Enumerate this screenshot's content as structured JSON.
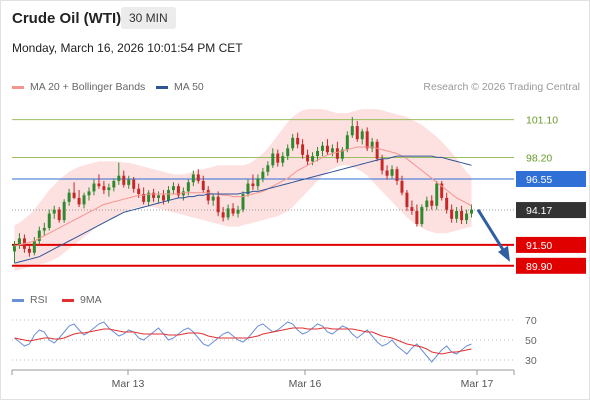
{
  "header": {
    "title": "Crude Oil (WTI)",
    "timeframe": "30 MIN",
    "datetime": "Monday, March 16, 2026 10:01:54 PM CET"
  },
  "legend": {
    "ma20": "MA 20 + Bollinger Bands",
    "ma50": "MA 50",
    "source": "Research © 2026 Trading Central",
    "rsi": "RSI",
    "ma9": "9MA"
  },
  "colors": {
    "ma20": "#f4958f",
    "ma50": "#2f5597",
    "bollinger_fill": "#fde0e0",
    "up_candle": "#2f8a2f",
    "down_candle": "#c62828",
    "resistance": "#9bbf5e",
    "pivot": "#2f6fd6",
    "support": "#e00000",
    "last_price": "#333333",
    "rsi_line": "#6b8fd8",
    "rsi_ma": "#e23030"
  },
  "chart_data": {
    "type": "candlestick",
    "x_labels": [
      "Mar 13",
      "Mar 16",
      "Mar 17"
    ],
    "ylim": [
      88.2,
      102.6
    ],
    "levels": [
      {
        "value": 101.1,
        "label": "101.10",
        "kind": "resistance"
      },
      {
        "value": 98.2,
        "label": "98.20",
        "kind": "resistance"
      },
      {
        "value": 96.55,
        "label": "96.55",
        "kind": "pivot"
      },
      {
        "value": 94.17,
        "label": "94.17",
        "kind": "last"
      },
      {
        "value": 91.5,
        "label": "91.50",
        "kind": "support"
      },
      {
        "value": 89.9,
        "label": "89.90",
        "kind": "support"
      }
    ],
    "forecast_arrow": {
      "from": 94.2,
      "to": 90.2,
      "direction": "down"
    },
    "candles": [
      [
        91.0,
        91.8,
        90.1,
        91.5
      ],
      [
        91.5,
        92.4,
        91.2,
        92.0
      ],
      [
        92.0,
        92.3,
        90.9,
        91.2
      ],
      [
        91.2,
        91.6,
        90.6,
        90.9
      ],
      [
        90.9,
        92.1,
        90.7,
        91.8
      ],
      [
        91.8,
        92.9,
        91.5,
        92.6
      ],
      [
        92.6,
        93.2,
        92.2,
        92.8
      ],
      [
        92.8,
        94.2,
        92.6,
        93.9
      ],
      [
        93.9,
        94.5,
        93.5,
        94.2
      ],
      [
        94.2,
        94.4,
        93.2,
        93.4
      ],
      [
        93.4,
        95.0,
        93.2,
        94.8
      ],
      [
        94.8,
        95.8,
        94.5,
        95.5
      ],
      [
        95.5,
        96.3,
        95.0,
        95.1
      ],
      [
        95.1,
        95.7,
        94.4,
        94.6
      ],
      [
        94.6,
        95.5,
        94.3,
        95.3
      ],
      [
        95.3,
        95.9,
        94.9,
        95.6
      ],
      [
        95.6,
        96.5,
        95.3,
        96.2
      ],
      [
        96.2,
        96.9,
        95.8,
        96.0
      ],
      [
        96.0,
        96.4,
        95.4,
        95.7
      ],
      [
        95.7,
        96.2,
        95.2,
        95.9
      ],
      [
        95.9,
        96.6,
        95.6,
        96.4
      ],
      [
        96.4,
        97.8,
        96.1,
        96.8
      ],
      [
        96.8,
        97.2,
        95.9,
        96.1
      ],
      [
        96.1,
        96.8,
        95.8,
        96.5
      ],
      [
        96.5,
        96.7,
        95.5,
        95.8
      ],
      [
        95.8,
        96.2,
        95.1,
        95.4
      ],
      [
        95.4,
        95.9,
        94.6,
        94.8
      ],
      [
        94.8,
        95.7,
        94.5,
        95.5
      ],
      [
        95.5,
        95.8,
        94.8,
        95.1
      ],
      [
        95.1,
        95.6,
        94.7,
        95.3
      ],
      [
        95.3,
        95.7,
        94.6,
        94.9
      ],
      [
        94.9,
        96.0,
        94.7,
        95.7
      ],
      [
        95.7,
        96.3,
        95.4,
        96.0
      ],
      [
        96.0,
        96.2,
        95.1,
        95.3
      ],
      [
        95.3,
        95.9,
        94.9,
        95.6
      ],
      [
        95.6,
        96.5,
        95.3,
        96.3
      ],
      [
        96.3,
        97.2,
        96.0,
        96.9
      ],
      [
        96.9,
        97.3,
        96.2,
        96.4
      ],
      [
        96.4,
        96.8,
        95.5,
        95.7
      ],
      [
        95.7,
        96.0,
        94.6,
        94.9
      ],
      [
        94.9,
        95.4,
        94.5,
        95.2
      ],
      [
        95.2,
        95.6,
        93.7,
        94.0
      ],
      [
        94.0,
        94.4,
        93.3,
        93.6
      ],
      [
        93.6,
        94.6,
        93.4,
        94.3
      ],
      [
        94.3,
        94.7,
        93.7,
        93.9
      ],
      [
        93.9,
        94.5,
        93.6,
        94.2
      ],
      [
        94.2,
        95.6,
        94.0,
        95.4
      ],
      [
        95.4,
        96.5,
        95.2,
        96.2
      ],
      [
        96.2,
        96.9,
        95.7,
        96.0
      ],
      [
        96.0,
        96.9,
        95.7,
        96.6
      ],
      [
        96.6,
        97.4,
        96.3,
        97.1
      ],
      [
        97.1,
        97.9,
        96.8,
        97.6
      ],
      [
        97.6,
        98.9,
        97.4,
        98.5
      ],
      [
        98.5,
        98.8,
        97.5,
        97.8
      ],
      [
        97.8,
        98.6,
        97.5,
        98.3
      ],
      [
        98.3,
        99.2,
        98.0,
        98.9
      ],
      [
        98.9,
        100.0,
        98.7,
        99.7
      ],
      [
        99.7,
        100.1,
        98.9,
        99.2
      ],
      [
        99.2,
        99.6,
        98.1,
        98.4
      ],
      [
        98.4,
        98.8,
        97.6,
        97.9
      ],
      [
        97.9,
        98.6,
        97.6,
        98.3
      ],
      [
        98.3,
        99.0,
        97.9,
        98.7
      ],
      [
        98.7,
        99.4,
        98.3,
        99.1
      ],
      [
        99.1,
        99.6,
        98.4,
        98.6
      ],
      [
        98.6,
        99.2,
        98.3,
        98.9
      ],
      [
        98.9,
        99.4,
        97.8,
        98.1
      ],
      [
        98.1,
        99.0,
        97.9,
        98.8
      ],
      [
        98.8,
        100.2,
        98.6,
        99.9
      ],
      [
        99.9,
        101.3,
        99.7,
        100.6
      ],
      [
        100.6,
        101.0,
        99.4,
        99.6
      ],
      [
        99.6,
        100.4,
        99.2,
        100.2
      ],
      [
        100.2,
        100.5,
        98.7,
        98.9
      ],
      [
        98.9,
        99.7,
        98.6,
        99.4
      ],
      [
        99.4,
        99.6,
        97.9,
        98.1
      ],
      [
        98.1,
        98.4,
        96.9,
        97.2
      ],
      [
        97.2,
        97.6,
        96.5,
        96.8
      ],
      [
        96.8,
        97.6,
        96.6,
        97.3
      ],
      [
        97.3,
        97.5,
        96.1,
        96.4
      ],
      [
        96.4,
        96.8,
        95.3,
        95.5
      ],
      [
        95.5,
        95.7,
        94.1,
        94.4
      ],
      [
        94.4,
        94.9,
        93.8,
        94.1
      ],
      [
        94.1,
        94.6,
        92.9,
        93.1
      ],
      [
        93.1,
        94.6,
        92.9,
        94.4
      ],
      [
        94.4,
        95.2,
        94.1,
        94.9
      ],
      [
        94.9,
        95.3,
        94.2,
        94.5
      ],
      [
        94.5,
        96.4,
        94.2,
        96.2
      ],
      [
        96.2,
        96.4,
        94.9,
        95.1
      ],
      [
        95.1,
        95.5,
        93.9,
        94.2
      ],
      [
        94.2,
        94.6,
        93.2,
        93.5
      ],
      [
        93.5,
        94.4,
        93.2,
        94.1
      ],
      [
        94.1,
        94.5,
        93.1,
        93.4
      ],
      [
        93.4,
        94.2,
        93.1,
        93.9
      ],
      [
        93.9,
        94.6,
        93.6,
        94.2
      ]
    ],
    "ma20": [
      91.4,
      91.5,
      91.6,
      91.7,
      91.8,
      92.0,
      92.2,
      92.4,
      92.6,
      92.8,
      93.0,
      93.2,
      93.4,
      93.6,
      93.8,
      94.0,
      94.2,
      94.4,
      94.6,
      94.7,
      94.8,
      94.9,
      95.0,
      95.1,
      95.2,
      95.3,
      95.3,
      95.4,
      95.4,
      95.4,
      95.4,
      95.4,
      95.4,
      95.4,
      95.5,
      95.5,
      95.5,
      95.5,
      95.5,
      95.5,
      95.4,
      95.4,
      95.3,
      95.3,
      95.2,
      95.2,
      95.2,
      95.3,
      95.4,
      95.5,
      95.6,
      95.8,
      96.0,
      96.2,
      96.4,
      96.6,
      96.9,
      97.2,
      97.4,
      97.6,
      97.8,
      98.0,
      98.2,
      98.4,
      98.5,
      98.6,
      98.7,
      98.8,
      98.9,
      99.0,
      99.0,
      99.0,
      99.0,
      98.9,
      98.8,
      98.7,
      98.6,
      98.5,
      98.3,
      98.1,
      97.8,
      97.5,
      97.2,
      96.9,
      96.6,
      96.3,
      96.0,
      95.7,
      95.4,
      95.1,
      94.9,
      94.7,
      94.5
    ],
    "bb_upper": [
      93.0,
      93.2,
      93.5,
      93.8,
      94.2,
      94.7,
      95.2,
      95.7,
      96.1,
      96.5,
      96.8,
      97.1,
      97.3,
      97.5,
      97.6,
      97.7,
      97.8,
      97.9,
      97.9,
      97.9,
      97.9,
      97.9,
      97.8,
      97.8,
      97.7,
      97.6,
      97.5,
      97.4,
      97.3,
      97.2,
      97.1,
      97.0,
      96.9,
      96.9,
      96.9,
      97.0,
      97.1,
      97.2,
      97.3,
      97.4,
      97.5,
      97.6,
      97.6,
      97.6,
      97.6,
      97.6,
      97.6,
      97.7,
      97.9,
      98.2,
      98.5,
      98.9,
      99.4,
      99.9,
      100.4,
      100.9,
      101.3,
      101.6,
      101.8,
      101.9,
      101.9,
      101.9,
      101.9,
      101.8,
      101.7,
      101.6,
      101.6,
      101.6,
      101.7,
      101.8,
      101.9,
      101.9,
      101.9,
      101.9,
      101.8,
      101.7,
      101.6,
      101.5,
      101.4,
      101.3,
      101.1,
      100.9,
      100.7,
      100.4,
      100.1,
      99.8,
      99.4,
      99.0,
      98.6,
      98.1,
      97.6,
      97.1,
      96.7
    ],
    "bb_lower": [
      89.5,
      89.6,
      89.7,
      89.8,
      89.9,
      90.0,
      90.1,
      90.2,
      90.4,
      90.6,
      90.9,
      91.2,
      91.5,
      91.8,
      92.1,
      92.4,
      92.7,
      93.0,
      93.2,
      93.4,
      93.6,
      93.8,
      94.0,
      94.2,
      94.3,
      94.4,
      94.4,
      94.4,
      94.4,
      94.3,
      94.2,
      94.1,
      94.0,
      93.9,
      93.8,
      93.7,
      93.6,
      93.5,
      93.4,
      93.3,
      93.2,
      93.1,
      93.0,
      92.9,
      92.9,
      92.9,
      93.0,
      93.1,
      93.2,
      93.3,
      93.4,
      93.5,
      93.6,
      93.7,
      93.9,
      94.1,
      94.4,
      94.8,
      95.2,
      95.6,
      96.0,
      96.4,
      96.8,
      97.1,
      97.3,
      97.5,
      97.6,
      97.6,
      97.5,
      97.3,
      97.1,
      96.8,
      96.4,
      96.0,
      95.6,
      95.2,
      94.8,
      94.4,
      94.0,
      93.6,
      93.3,
      93.0,
      92.8,
      92.6,
      92.5,
      92.4,
      92.4,
      92.4,
      92.5,
      92.6,
      92.7,
      92.8,
      92.9
    ],
    "ma50": [
      90.1,
      90.2,
      90.3,
      90.4,
      90.5,
      90.6,
      90.8,
      91.0,
      91.2,
      91.4,
      91.6,
      91.8,
      92.0,
      92.2,
      92.4,
      92.6,
      92.8,
      93.0,
      93.2,
      93.4,
      93.6,
      93.8,
      94.0,
      94.1,
      94.2,
      94.3,
      94.4,
      94.5,
      94.6,
      94.7,
      94.8,
      94.9,
      95.0,
      95.1,
      95.1,
      95.2,
      95.2,
      95.3,
      95.3,
      95.4,
      95.4,
      95.4,
      95.4,
      95.4,
      95.4,
      95.4,
      95.5,
      95.5,
      95.6,
      95.6,
      95.7,
      95.8,
      95.9,
      96.0,
      96.1,
      96.2,
      96.3,
      96.4,
      96.5,
      96.6,
      96.7,
      96.8,
      96.9,
      97.0,
      97.1,
      97.2,
      97.3,
      97.4,
      97.5,
      97.6,
      97.7,
      97.8,
      97.9,
      98.0,
      98.1,
      98.1,
      98.2,
      98.3,
      98.3,
      98.3,
      98.3,
      98.3,
      98.3,
      98.3,
      98.3,
      98.2,
      98.2,
      98.1,
      98.0,
      97.9,
      97.8,
      97.7,
      97.6
    ],
    "rsi": {
      "ticks": [
        70,
        50,
        30
      ],
      "ylim": [
        22,
        78
      ],
      "values": [
        52,
        48,
        44,
        46,
        55,
        60,
        58,
        50,
        47,
        52,
        58,
        64,
        66,
        60,
        55,
        58,
        62,
        66,
        68,
        62,
        58,
        54,
        56,
        60,
        58,
        52,
        50,
        54,
        58,
        62,
        56,
        50,
        52,
        56,
        60,
        62,
        58,
        52,
        46,
        44,
        48,
        52,
        56,
        58,
        54,
        50,
        48,
        52,
        58,
        64,
        66,
        62,
        58,
        60,
        64,
        68,
        66,
        60,
        56,
        58,
        62,
        66,
        64,
        58,
        56,
        60,
        64,
        62,
        56,
        52,
        56,
        60,
        54,
        48,
        44,
        46,
        50,
        44,
        40,
        36,
        42,
        46,
        40,
        34,
        28,
        34,
        40,
        44,
        38,
        36,
        40,
        44,
        46
      ],
      "ma9": [
        52,
        51,
        50,
        49,
        50,
        51,
        52,
        52,
        51,
        51,
        52,
        54,
        56,
        57,
        57,
        58,
        59,
        60,
        61,
        61,
        60,
        59,
        58,
        58,
        58,
        57,
        56,
        56,
        56,
        56,
        56,
        55,
        55,
        55,
        56,
        57,
        57,
        57,
        56,
        54,
        53,
        52,
        52,
        52,
        52,
        52,
        52,
        52,
        53,
        54,
        56,
        57,
        58,
        59,
        60,
        61,
        62,
        62,
        62,
        61,
        61,
        61,
        62,
        62,
        61,
        61,
        61,
        61,
        61,
        60,
        59,
        58,
        58,
        56,
        54,
        53,
        52,
        50,
        48,
        46,
        45,
        44,
        43,
        41,
        38,
        37,
        36,
        37,
        38,
        38,
        39,
        40,
        41
      ]
    }
  }
}
